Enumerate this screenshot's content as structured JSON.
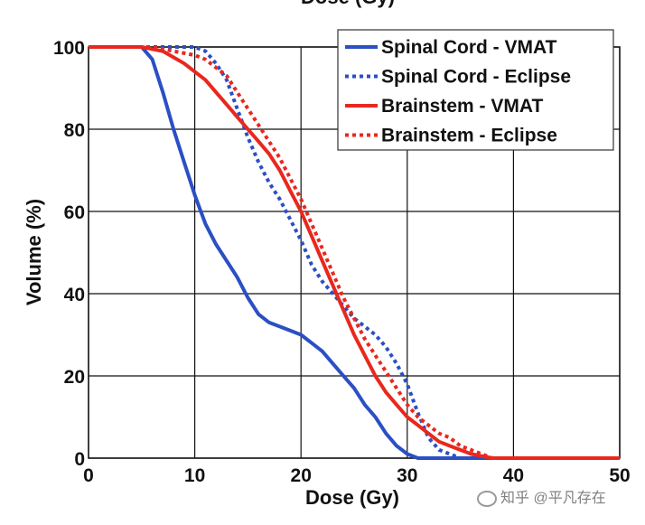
{
  "chart_data": {
    "type": "line",
    "title": "",
    "top_cropped_label": "Dose (Gy)",
    "xlabel": "Dose (Gy)",
    "ylabel": "Volume (%)",
    "xlim": [
      0,
      50
    ],
    "ylim": [
      0,
      100
    ],
    "xticks": [
      0,
      10,
      20,
      30,
      40,
      50
    ],
    "yticks": [
      0,
      20,
      40,
      60,
      80,
      100
    ],
    "grid": true,
    "legend_position": "top-right",
    "series": [
      {
        "name": "Spinal Cord - VMAT",
        "color": "#2b4fc4",
        "dash": "solid",
        "x": [
          0,
          5,
          6,
          7,
          8,
          9,
          10,
          11,
          12,
          13,
          14,
          15,
          16,
          17,
          18,
          19,
          20,
          21,
          22,
          23,
          24,
          25,
          26,
          27,
          28,
          29,
          30,
          31,
          32,
          35,
          40,
          50
        ],
        "y": [
          100,
          100,
          97,
          89,
          80,
          72,
          64,
          57,
          52,
          48,
          44,
          39,
          35,
          33,
          32,
          31,
          30,
          28,
          26,
          23,
          20,
          17,
          13,
          10,
          6,
          3,
          1,
          0,
          0,
          0,
          0,
          0
        ]
      },
      {
        "name": "Spinal Cord - Eclipse",
        "color": "#2b4fc4",
        "dash": "dotted",
        "x": [
          0,
          8,
          10,
          11,
          12,
          13,
          14,
          15,
          16,
          17,
          18,
          19,
          20,
          21,
          22,
          23,
          24,
          25,
          26,
          27,
          28,
          29,
          30,
          31,
          32,
          33,
          34,
          35,
          37,
          40,
          50
        ],
        "y": [
          100,
          100,
          100,
          99,
          96,
          92,
          85,
          78,
          72,
          67,
          63,
          58,
          53,
          47,
          43,
          40,
          37,
          34,
          32,
          30,
          27,
          23,
          18,
          11,
          5,
          2,
          1,
          0,
          0,
          0,
          0
        ]
      },
      {
        "name": "Brainstem - VMAT",
        "color": "#e8281e",
        "dash": "solid",
        "x": [
          0,
          5,
          7,
          9,
          10,
          11,
          12,
          13,
          14,
          15,
          16,
          17,
          18,
          19,
          20,
          21,
          22,
          23,
          24,
          25,
          26,
          27,
          28,
          29,
          30,
          31,
          32,
          33,
          34,
          35,
          36,
          38,
          40,
          50
        ],
        "y": [
          100,
          100,
          99,
          96,
          94,
          92,
          89,
          86,
          83,
          80,
          77,
          74,
          70,
          65,
          60,
          54,
          48,
          42,
          36,
          30,
          25,
          20,
          16,
          13,
          10,
          8,
          6,
          4,
          3,
          2,
          1,
          0,
          0,
          0
        ]
      },
      {
        "name": "Brainstem - Eclipse",
        "color": "#e8281e",
        "dash": "dotted",
        "x": [
          0,
          6,
          8,
          10,
          11,
          12,
          13,
          14,
          15,
          16,
          17,
          18,
          19,
          20,
          21,
          22,
          23,
          24,
          25,
          26,
          27,
          28,
          29,
          30,
          31,
          32,
          33,
          34,
          35,
          36,
          37,
          38,
          40,
          50
        ],
        "y": [
          100,
          100,
          99,
          98,
          97,
          95,
          93,
          89,
          85,
          81,
          77,
          73,
          68,
          63,
          57,
          51,
          45,
          39,
          34,
          29,
          25,
          21,
          17,
          13,
          10,
          8,
          6,
          5,
          3,
          2,
          1,
          0,
          0,
          0
        ]
      }
    ]
  },
  "watermark": {
    "icon": "chat-bubble-icon",
    "text": "知乎 @平凡存在"
  }
}
